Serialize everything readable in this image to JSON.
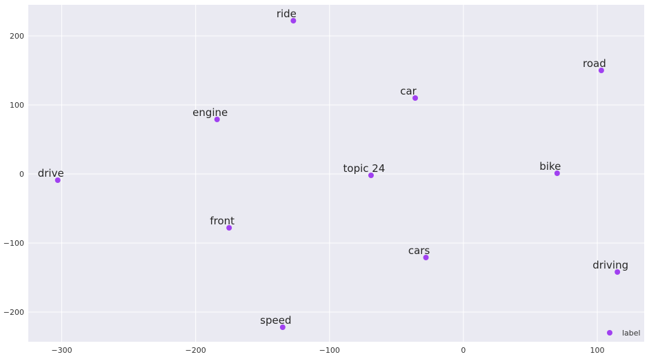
{
  "chart_data": {
    "type": "scatter",
    "title": "",
    "xlabel": "",
    "ylabel": "",
    "xlim": [
      -325,
      135
    ],
    "ylim": [
      -243,
      245
    ],
    "xticks": [
      -300,
      -200,
      -100,
      0,
      100
    ],
    "yticks": [
      -200,
      -100,
      0,
      100,
      200
    ],
    "grid": true,
    "legend": {
      "position": "bottom-right",
      "entries": [
        "label"
      ]
    },
    "series": [
      {
        "name": "label",
        "color": "#a040f0",
        "points": [
          {
            "label": "ride",
            "x": -127,
            "y": 222
          },
          {
            "label": "road",
            "x": 103,
            "y": 150
          },
          {
            "label": "car",
            "x": -36,
            "y": 110
          },
          {
            "label": "engine",
            "x": -184,
            "y": 79
          },
          {
            "label": "drive",
            "x": -303,
            "y": -9
          },
          {
            "label": "topic 24",
            "x": -69,
            "y": -2
          },
          {
            "label": "bike",
            "x": 70,
            "y": 1
          },
          {
            "label": "front",
            "x": -175,
            "y": -78
          },
          {
            "label": "cars",
            "x": -28,
            "y": -121
          },
          {
            "label": "driving",
            "x": 115,
            "y": -142
          },
          {
            "label": "speed",
            "x": -135,
            "y": -222
          }
        ]
      }
    ]
  }
}
